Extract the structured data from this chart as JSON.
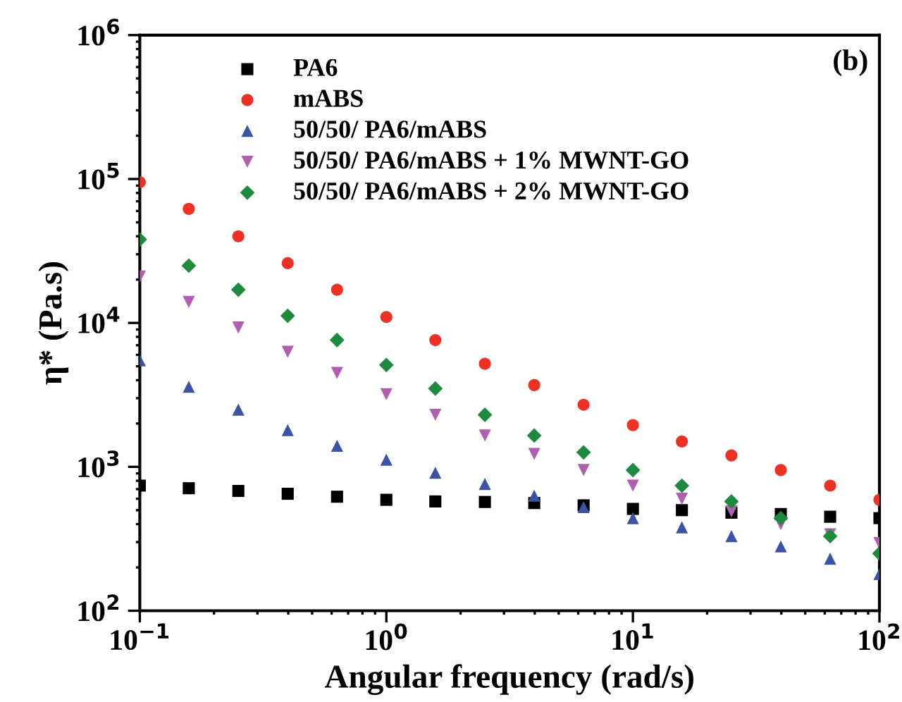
{
  "chart_data": {
    "type": "scatter",
    "xlabel": "Angular frequency (rad/s)",
    "ylabel": "η* (Pa.s)",
    "log": "xy",
    "annotations": [
      "(b)"
    ],
    "legend": "top left",
    "grid": false,
    "x": [
      0.1,
      0.158,
      0.251,
      0.398,
      0.631,
      1,
      1.58,
      2.51,
      3.98,
      6.31,
      10,
      15.8,
      25.1,
      39.8,
      63.1,
      100
    ],
    "xlim": [
      0.1,
      100
    ],
    "ylim": [
      100,
      1000000
    ],
    "xticks": [
      {
        "value": 0.1,
        "label": "10$^{−1}$"
      },
      {
        "value": 1,
        "label": "10$^{0}$"
      },
      {
        "value": 10,
        "label": "10$^{1}$"
      },
      {
        "value": 100,
        "label": "10$^{2}$"
      }
    ],
    "yticks": [
      {
        "value": 100,
        "label": "10$^{2}$"
      },
      {
        "value": 1000,
        "label": "10$^{3}$"
      },
      {
        "value": 10000,
        "label": "10$^{4}$"
      },
      {
        "value": 100000,
        "label": "10$^{5}$"
      },
      {
        "value": 1000000,
        "label": "10$^{6}$"
      }
    ],
    "series": [
      {
        "name": "PA6",
        "color": "#000000",
        "marker": "square",
        "values": [
          740,
          710,
          680,
          650,
          620,
          590,
          575,
          570,
          560,
          540,
          510,
          500,
          480,
          470,
          450,
          440
        ]
      },
      {
        "name": "mABS",
        "color": "#ee3124",
        "marker": "circle",
        "values": [
          95000,
          62000,
          40000,
          26000,
          17000,
          11000,
          7600,
          5200,
          3700,
          2700,
          1950,
          1500,
          1200,
          950,
          740,
          590
        ]
      },
      {
        "name": "50/50/ PA6/mABS",
        "color": "#3a53a4",
        "marker": "triangle",
        "values": [
          5500,
          3600,
          2500,
          1800,
          1400,
          1120,
          910,
          760,
          630,
          525,
          440,
          380,
          330,
          280,
          230,
          180
        ]
      },
      {
        "name": "50/50/ PA6/mABS + 1% MWNT-GO",
        "color": "#b05fb0",
        "marker": "triangle_down",
        "values": [
          21000,
          14000,
          9300,
          6300,
          4500,
          3200,
          2300,
          1650,
          1230,
          950,
          740,
          600,
          490,
          400,
          340,
          295
        ]
      },
      {
        "name": "50/50/ PA6/mABS + 2% MWNT-GO",
        "color": "#1e8a3e",
        "marker": "diamond",
        "values": [
          38000,
          25000,
          17000,
          11200,
          7600,
          5100,
          3500,
          2300,
          1650,
          1260,
          950,
          740,
          575,
          440,
          330,
          250
        ]
      }
    ]
  }
}
